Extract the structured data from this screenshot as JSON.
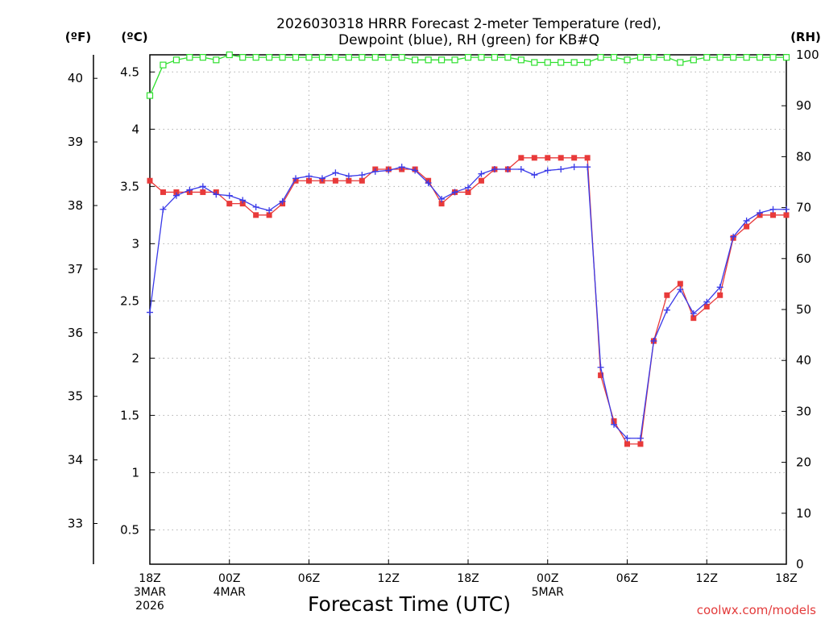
{
  "chart_data": {
    "type": "line",
    "title": [
      "2026030318 HRRR Forecast 2-meter Temperature (red),",
      "Dewpoint (blue), RH (green) for KB#Q"
    ],
    "xlabel": "Forecast Time (UTC)",
    "credit": "coolwx.com/models",
    "units": {
      "fahrenheit": "(ºF)",
      "celsius": "(ºC)",
      "rh": "(RH)"
    },
    "forecast_hours": [
      0,
      1,
      2,
      3,
      4,
      5,
      6,
      7,
      8,
      9,
      10,
      11,
      12,
      13,
      14,
      15,
      16,
      17,
      18,
      19,
      20,
      21,
      22,
      23,
      24,
      25,
      26,
      27,
      28,
      29,
      30,
      31,
      32,
      33,
      34,
      35,
      36,
      37,
      38,
      39,
      40,
      41,
      42,
      43,
      44,
      45,
      46,
      47,
      48
    ],
    "x_ticks": [
      {
        "hour": 0,
        "lines": [
          "18Z",
          "3MAR",
          "2026"
        ]
      },
      {
        "hour": 6,
        "lines": [
          "00Z",
          "4MAR"
        ]
      },
      {
        "hour": 12,
        "lines": [
          "06Z"
        ]
      },
      {
        "hour": 18,
        "lines": [
          "12Z"
        ]
      },
      {
        "hour": 24,
        "lines": [
          "18Z"
        ]
      },
      {
        "hour": 30,
        "lines": [
          "00Z",
          "5MAR"
        ]
      },
      {
        "hour": 36,
        "lines": [
          "06Z"
        ]
      },
      {
        "hour": 42,
        "lines": [
          "12Z"
        ]
      },
      {
        "hour": 48,
        "lines": [
          "18Z"
        ]
      }
    ],
    "xlim": [
      0,
      48
    ],
    "celsius_axis": {
      "ylim": [
        0.2,
        4.65
      ],
      "ticks": [
        "0.5",
        "1",
        "1.5",
        "2",
        "2.5",
        "3",
        "3.5",
        "4",
        "4.5"
      ]
    },
    "fahrenheit_axis": {
      "ticks": [
        "33",
        "34",
        "35",
        "36",
        "37",
        "38",
        "39",
        "40"
      ]
    },
    "rh_axis": {
      "ylim": [
        0,
        100
      ],
      "ticks": [
        "0",
        "10",
        "20",
        "30",
        "40",
        "50",
        "60",
        "70",
        "80",
        "90",
        "100"
      ]
    },
    "grid": true,
    "series": [
      {
        "name": "Temperature",
        "unit": "C",
        "color": "#e83a3a",
        "marker": "square",
        "values": [
          3.55,
          3.45,
          3.45,
          3.45,
          3.45,
          3.45,
          3.35,
          3.35,
          3.25,
          3.25,
          3.35,
          3.55,
          3.55,
          3.55,
          3.55,
          3.55,
          3.55,
          3.65,
          3.65,
          3.65,
          3.65,
          3.55,
          3.35,
          3.45,
          3.45,
          3.55,
          3.65,
          3.65,
          3.75,
          3.75,
          3.75,
          3.75,
          3.75,
          3.75,
          1.85,
          1.45,
          1.25,
          1.25,
          2.15,
          2.55,
          2.65,
          2.35,
          2.45,
          2.55,
          3.05,
          3.15,
          3.25,
          3.25,
          3.25
        ]
      },
      {
        "name": "Dewpoint",
        "unit": "C",
        "color": "#3a3ae8",
        "marker": "plus",
        "values": [
          2.4,
          3.3,
          3.42,
          3.47,
          3.5,
          3.43,
          3.42,
          3.38,
          3.32,
          3.29,
          3.37,
          3.57,
          3.59,
          3.57,
          3.62,
          3.59,
          3.6,
          3.63,
          3.64,
          3.67,
          3.64,
          3.53,
          3.39,
          3.45,
          3.49,
          3.61,
          3.65,
          3.65,
          3.65,
          3.6,
          3.64,
          3.65,
          3.67,
          3.67,
          1.92,
          1.42,
          1.3,
          1.3,
          2.15,
          2.42,
          2.6,
          2.39,
          2.49,
          2.62,
          3.06,
          3.2,
          3.27,
          3.3,
          3.3
        ]
      },
      {
        "name": "RH",
        "unit": "%",
        "color": "#2ee02e",
        "marker": "square-open",
        "values": [
          92,
          98,
          99,
          99.5,
          99.5,
          99,
          100,
          99.5,
          99.5,
          99.5,
          99.5,
          99.5,
          99.5,
          99.5,
          99.5,
          99.5,
          99.5,
          99.5,
          99.5,
          99.5,
          99,
          99,
          99,
          99,
          99.5,
          99.5,
          99.5,
          99.5,
          99,
          98.5,
          98.5,
          98.5,
          98.5,
          98.5,
          99.5,
          99.5,
          99,
          99.5,
          99.5,
          99.5,
          98.5,
          99,
          99.5,
          99.5,
          99.5,
          99.5,
          99.5,
          99.5,
          99.5
        ]
      }
    ]
  }
}
